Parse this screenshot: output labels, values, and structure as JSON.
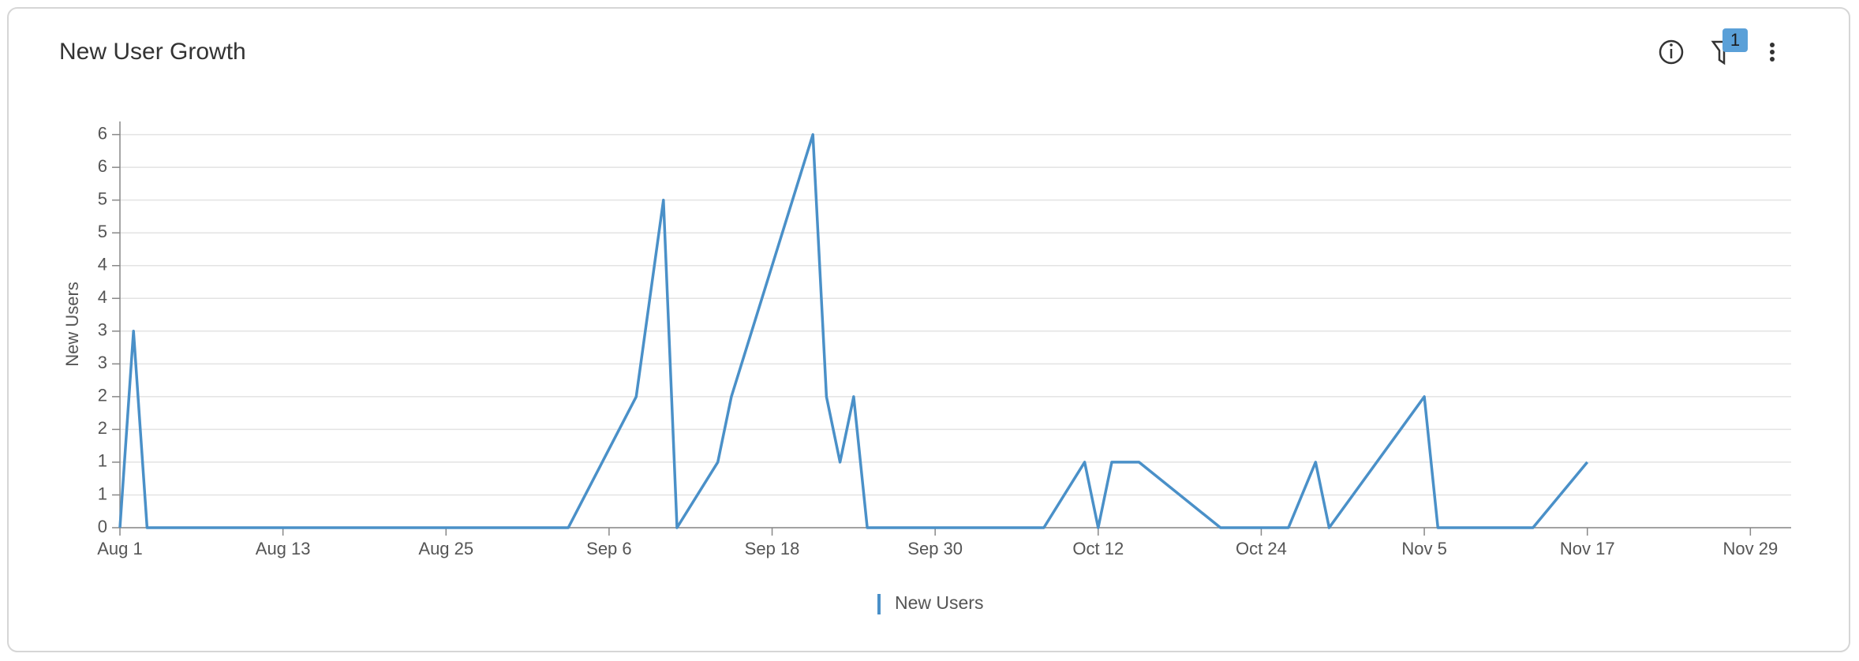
{
  "toolbar": {
    "filter_count": 1
  },
  "chart_data": {
    "type": "line",
    "title": "New User Growth",
    "y_label": "New Users",
    "x": [
      "Aug 1",
      "Aug 2",
      "Aug 3",
      "Sep 3",
      "Sep 8",
      "Sep 10",
      "Sep 11",
      "Sep 14",
      "Sep 15",
      "Sep 21",
      "Sep 22",
      "Sep 23",
      "Sep 24",
      "Sep 25",
      "Oct 8",
      "Oct 11",
      "Oct 12",
      "Oct 13",
      "Oct 15",
      "Oct 21",
      "Oct 26",
      "Oct 28",
      "Oct 29",
      "Nov 5",
      "Nov 6",
      "Nov 13",
      "Nov 17"
    ],
    "series": [
      {
        "name": "New Users",
        "color": "#4a90c8",
        "values": [
          0,
          3,
          0,
          0,
          2,
          5,
          0,
          1,
          2,
          6,
          2,
          1,
          2,
          0,
          0,
          1,
          0,
          1,
          1,
          0,
          0,
          1,
          0,
          2,
          0,
          0,
          1
        ]
      }
    ],
    "xlim": [
      "Aug 1",
      "Dec 2"
    ],
    "xticks": [
      "Aug 1",
      "Aug 13",
      "Aug 25",
      "Sep 6",
      "Sep 18",
      "Sep 30",
      "Oct 12",
      "Oct 24",
      "Nov 5",
      "Nov 17",
      "Nov 29"
    ],
    "ylim": [
      0,
      6.2
    ],
    "yticks": [
      0,
      {
        "value": 0.5,
        "label": "1"
      },
      1,
      {
        "value": 1.5,
        "label": "2"
      },
      2,
      {
        "value": 2.5,
        "label": "3"
      },
      3,
      {
        "value": 3.5,
        "label": "4"
      },
      4,
      {
        "value": 4.5,
        "label": "5"
      },
      5,
      {
        "value": 5.5,
        "label": "6"
      },
      6
    ],
    "grid": true,
    "legend": "bottom"
  }
}
